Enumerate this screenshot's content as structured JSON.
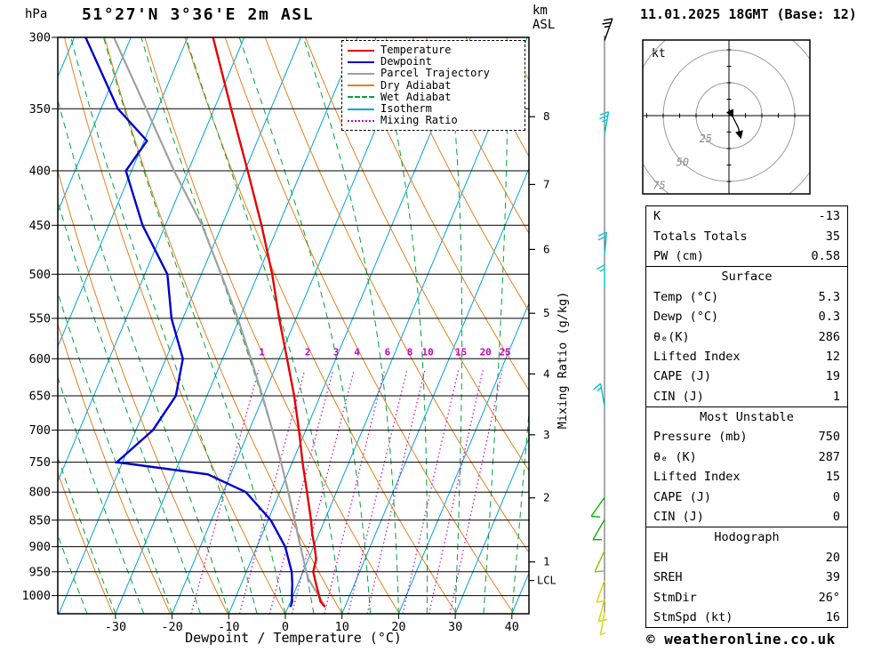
{
  "header": {
    "pressure_unit": "hPa",
    "title": "51°27'N 3°36'E 2m ASL",
    "km_line1": "km",
    "km_line2": "ASL",
    "datetime": "11.01.2025 18GMT (Base: 12)"
  },
  "axes": {
    "xlabel": "Dewpoint / Temperature (°C)",
    "mixing_ratio_label": "Mixing Ratio (g/kg)",
    "pressure_ticks": [
      300,
      350,
      400,
      450,
      500,
      550,
      600,
      650,
      700,
      750,
      800,
      850,
      900,
      950,
      1000
    ],
    "temp_ticks": [
      -30,
      -20,
      -10,
      0,
      10,
      20,
      30,
      40
    ],
    "km_ticks": [
      {
        "km": 1,
        "p": 930
      },
      {
        "km": 2,
        "p": 810
      },
      {
        "km": 3,
        "p": 707
      },
      {
        "km": 4,
        "p": 620
      },
      {
        "km": 5,
        "p": 544
      },
      {
        "km": 6,
        "p": 474
      },
      {
        "km": 7,
        "p": 412
      },
      {
        "km": 8,
        "p": 356
      }
    ],
    "lcl": {
      "label": "LCL",
      "p": 968
    }
  },
  "legend": [
    {
      "label": "Temperature",
      "color": "#e60000",
      "style": "solid"
    },
    {
      "label": "Dewpoint",
      "color": "#0000cd",
      "style": "solid"
    },
    {
      "label": "Parcel Trajectory",
      "color": "#a0a0a0",
      "style": "solid"
    },
    {
      "label": "Dry Adiabat",
      "color": "#e0821e",
      "style": "solid"
    },
    {
      "label": "Wet Adiabat",
      "color": "#00a33c",
      "style": "dashed"
    },
    {
      "label": "Isotherm",
      "color": "#00a2dc",
      "style": "solid"
    },
    {
      "label": "Mixing Ratio",
      "color": "#c800c8",
      "style": "dotted"
    }
  ],
  "chart_data": {
    "type": "skewt_log_p_sounding",
    "pressure_axis_hpa": [
      300,
      1040
    ],
    "temp_axis_c": [
      -40,
      43
    ],
    "isotherm_step_c": 10,
    "dry_adiabat_step_k": 10,
    "wet_adiabat_step_c": 5,
    "mixing_ratio_lines_g_kg": [
      1,
      2,
      3,
      4,
      6,
      8,
      10,
      15,
      20,
      25
    ],
    "series": [
      {
        "name": "Parcel Trajectory",
        "color": "#a0a0a0",
        "width": 2.2,
        "points_p_t": [
          [
            1025,
            6.5
          ],
          [
            1000,
            4.5
          ],
          [
            965,
            1.5
          ],
          [
            950,
            0.6
          ],
          [
            900,
            -2.3
          ],
          [
            850,
            -5.3
          ],
          [
            800,
            -8.5
          ],
          [
            750,
            -12.0
          ],
          [
            700,
            -15.9
          ],
          [
            650,
            -20.2
          ],
          [
            600,
            -25.0
          ],
          [
            550,
            -30.3
          ],
          [
            500,
            -36.5
          ],
          [
            450,
            -43.5
          ],
          [
            400,
            -52.5
          ],
          [
            350,
            -62.0
          ],
          [
            300,
            -73.0
          ]
        ]
      },
      {
        "name": "Dewpoint",
        "color": "#0000cd",
        "width": 2.4,
        "points_p_t": [
          [
            1025,
            0.4
          ],
          [
            1013,
            0.3
          ],
          [
            1000,
            -0.2
          ],
          [
            975,
            -1.0
          ],
          [
            950,
            -2.0
          ],
          [
            900,
            -5.0
          ],
          [
            850,
            -9.5
          ],
          [
            800,
            -16.0
          ],
          [
            770,
            -24.0
          ],
          [
            750,
            -41.0
          ],
          [
            700,
            -37.0
          ],
          [
            650,
            -35.5
          ],
          [
            600,
            -37.0
          ],
          [
            550,
            -42.0
          ],
          [
            500,
            -46.0
          ],
          [
            450,
            -54.0
          ],
          [
            400,
            -61.0
          ],
          [
            375,
            -59.5
          ],
          [
            350,
            -67.0
          ],
          [
            300,
            -78.0
          ]
        ]
      },
      {
        "name": "Temperature",
        "color": "#e60000",
        "width": 2.4,
        "points_p_t": [
          [
            1025,
            6.5
          ],
          [
            1013,
            5.3
          ],
          [
            1000,
            4.6
          ],
          [
            975,
            3.2
          ],
          [
            950,
            1.8
          ],
          [
            925,
            1.4
          ],
          [
            900,
            0.2
          ],
          [
            875,
            -1.2
          ],
          [
            850,
            -2.4
          ],
          [
            800,
            -5.2
          ],
          [
            750,
            -8.2
          ],
          [
            700,
            -11.2
          ],
          [
            650,
            -14.6
          ],
          [
            600,
            -18.6
          ],
          [
            550,
            -23.0
          ],
          [
            500,
            -27.5
          ],
          [
            450,
            -33.0
          ],
          [
            400,
            -39.5
          ],
          [
            350,
            -47.0
          ],
          [
            300,
            -55.5
          ]
        ]
      }
    ],
    "wind_barbs": [
      {
        "p": 302,
        "dir_deg": 20,
        "speed_kt": 25,
        "color": "#000000"
      },
      {
        "p": 370,
        "dir_deg": 10,
        "speed_kt": 25,
        "color": "#00c3c8"
      },
      {
        "p": 480,
        "dir_deg": 5,
        "speed_kt": 20,
        "color": "#00c3c8"
      },
      {
        "p": 515,
        "dir_deg": 0,
        "speed_kt": 15,
        "color": "#00c3c8"
      },
      {
        "p": 665,
        "dir_deg": 350,
        "speed_kt": 15,
        "color": "#00c3c8"
      },
      {
        "p": 809,
        "dir_deg": 215,
        "speed_kt": 10,
        "color": "#00b400"
      },
      {
        "p": 849,
        "dir_deg": 210,
        "speed_kt": 10,
        "color": "#00b400"
      },
      {
        "p": 908,
        "dir_deg": 205,
        "speed_kt": 10,
        "color": "#7ec800"
      },
      {
        "p": 968,
        "dir_deg": 200,
        "speed_kt": 10,
        "color": "#d7d700"
      },
      {
        "p": 1008,
        "dir_deg": 195,
        "speed_kt": 10,
        "color": "#d7d700"
      },
      {
        "p": 1036,
        "dir_deg": 190,
        "speed_kt": 5,
        "color": "#d7d700"
      }
    ]
  },
  "hodograph": {
    "unit_label": "kt",
    "rings_kt": [
      25,
      50,
      75
    ],
    "trace_kt_uv": [
      [
        0,
        5
      ],
      [
        3,
        -1
      ],
      [
        7,
        -9
      ],
      [
        9,
        -17
      ]
    ]
  },
  "stats": {
    "groups": [
      {
        "title": "",
        "rows": [
          {
            "label": "K",
            "value": "-13"
          },
          {
            "label": "Totals Totals",
            "value": "35"
          },
          {
            "label": "PW (cm)",
            "value": "0.58"
          }
        ]
      },
      {
        "title": "Surface",
        "rows": [
          {
            "label": "Temp (°C)",
            "value": "5.3"
          },
          {
            "label": "Dewp (°C)",
            "value": "0.3"
          },
          {
            "label": "θₑ(K)",
            "value": "286"
          },
          {
            "label": "Lifted Index",
            "value": "12"
          },
          {
            "label": "CAPE (J)",
            "value": "19"
          },
          {
            "label": "CIN (J)",
            "value": "1"
          }
        ]
      },
      {
        "title": "Most Unstable",
        "rows": [
          {
            "label": "Pressure (mb)",
            "value": "750"
          },
          {
            "label": "θₑ (K)",
            "value": "287"
          },
          {
            "label": "Lifted Index",
            "value": "15"
          },
          {
            "label": "CAPE (J)",
            "value": "0"
          },
          {
            "label": "CIN (J)",
            "value": "0"
          }
        ]
      },
      {
        "title": "Hodograph",
        "rows": [
          {
            "label": "EH",
            "value": "20"
          },
          {
            "label": "SREH",
            "value": "39"
          },
          {
            "label": "StmDir",
            "value": "26°"
          },
          {
            "label": "StmSpd (kt)",
            "value": "16"
          }
        ]
      }
    ]
  },
  "footer": {
    "copyright": "© weatheronline.co.uk"
  },
  "colors": {
    "isotherm": "#00a2dc",
    "dry_adiabat": "#e0821e",
    "wet_adiabat": "#00a33c",
    "mixing_ratio": "#c800c8",
    "frame": "#000000"
  }
}
